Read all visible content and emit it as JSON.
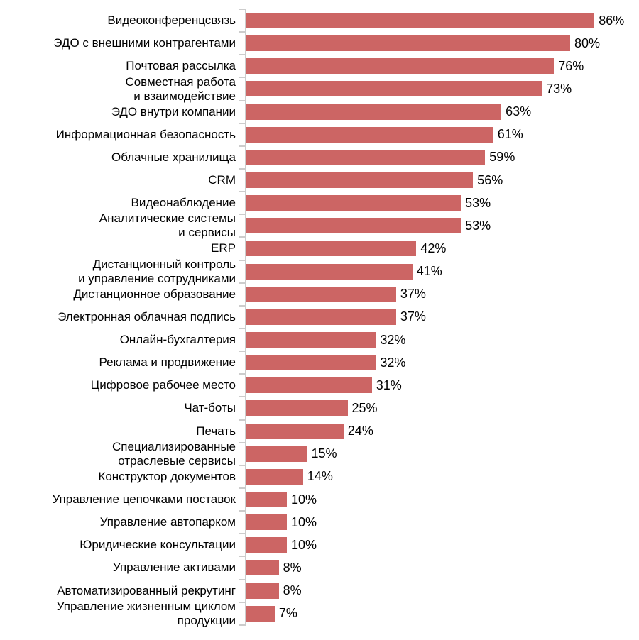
{
  "chart_data": {
    "type": "bar",
    "orientation": "horizontal",
    "title": "",
    "xlabel": "",
    "ylabel": "",
    "unit": "%",
    "xlim": [
      0,
      100
    ],
    "grid": false,
    "legend": false,
    "bar_color": "#cc6564",
    "axis_color": "#cccccc",
    "text_color": "#000000",
    "categories": [
      "Видеоконференцсвязь",
      "ЭДО с внешними контрагентами",
      "Почтовая рассылка",
      "Совместная работа\nи взаимодействие",
      "ЭДО внутри компании",
      "Информационная безопасность",
      "Облачные хранилища",
      "CRM",
      "Видеонаблюдение",
      "Аналитические системы\nи сервисы",
      "ERP",
      "Дистанционный контроль\nи управление сотрудниками",
      "Дистанционное образование",
      "Электронная облачная подпись",
      "Онлайн-бухгалтерия",
      "Реклама и продвижение",
      "Цифровое рабочее место",
      "Чат-боты",
      "Печать",
      "Специализированные\nотраслевые сервисы",
      "Конструктор документов",
      "Управление цепочками поставок",
      "Управление автопарком",
      "Юридические консультации",
      "Управление активами",
      "Автоматизированный рекрутинг",
      "Управление жизненным циклом\nпродукции"
    ],
    "values": [
      86,
      80,
      76,
      73,
      63,
      61,
      59,
      56,
      53,
      53,
      42,
      41,
      37,
      37,
      32,
      32,
      31,
      25,
      24,
      15,
      14,
      10,
      10,
      10,
      8,
      8,
      7
    ],
    "value_labels": [
      "86%",
      "80%",
      "76%",
      "73%",
      "63%",
      "61%",
      "59%",
      "56%",
      "53%",
      "53%",
      "42%",
      "41%",
      "37%",
      "37%",
      "32%",
      "32%",
      "31%",
      "25%",
      "24%",
      "15%",
      "14%",
      "10%",
      "10%",
      "10%",
      "8%",
      "8%",
      "7%"
    ]
  }
}
